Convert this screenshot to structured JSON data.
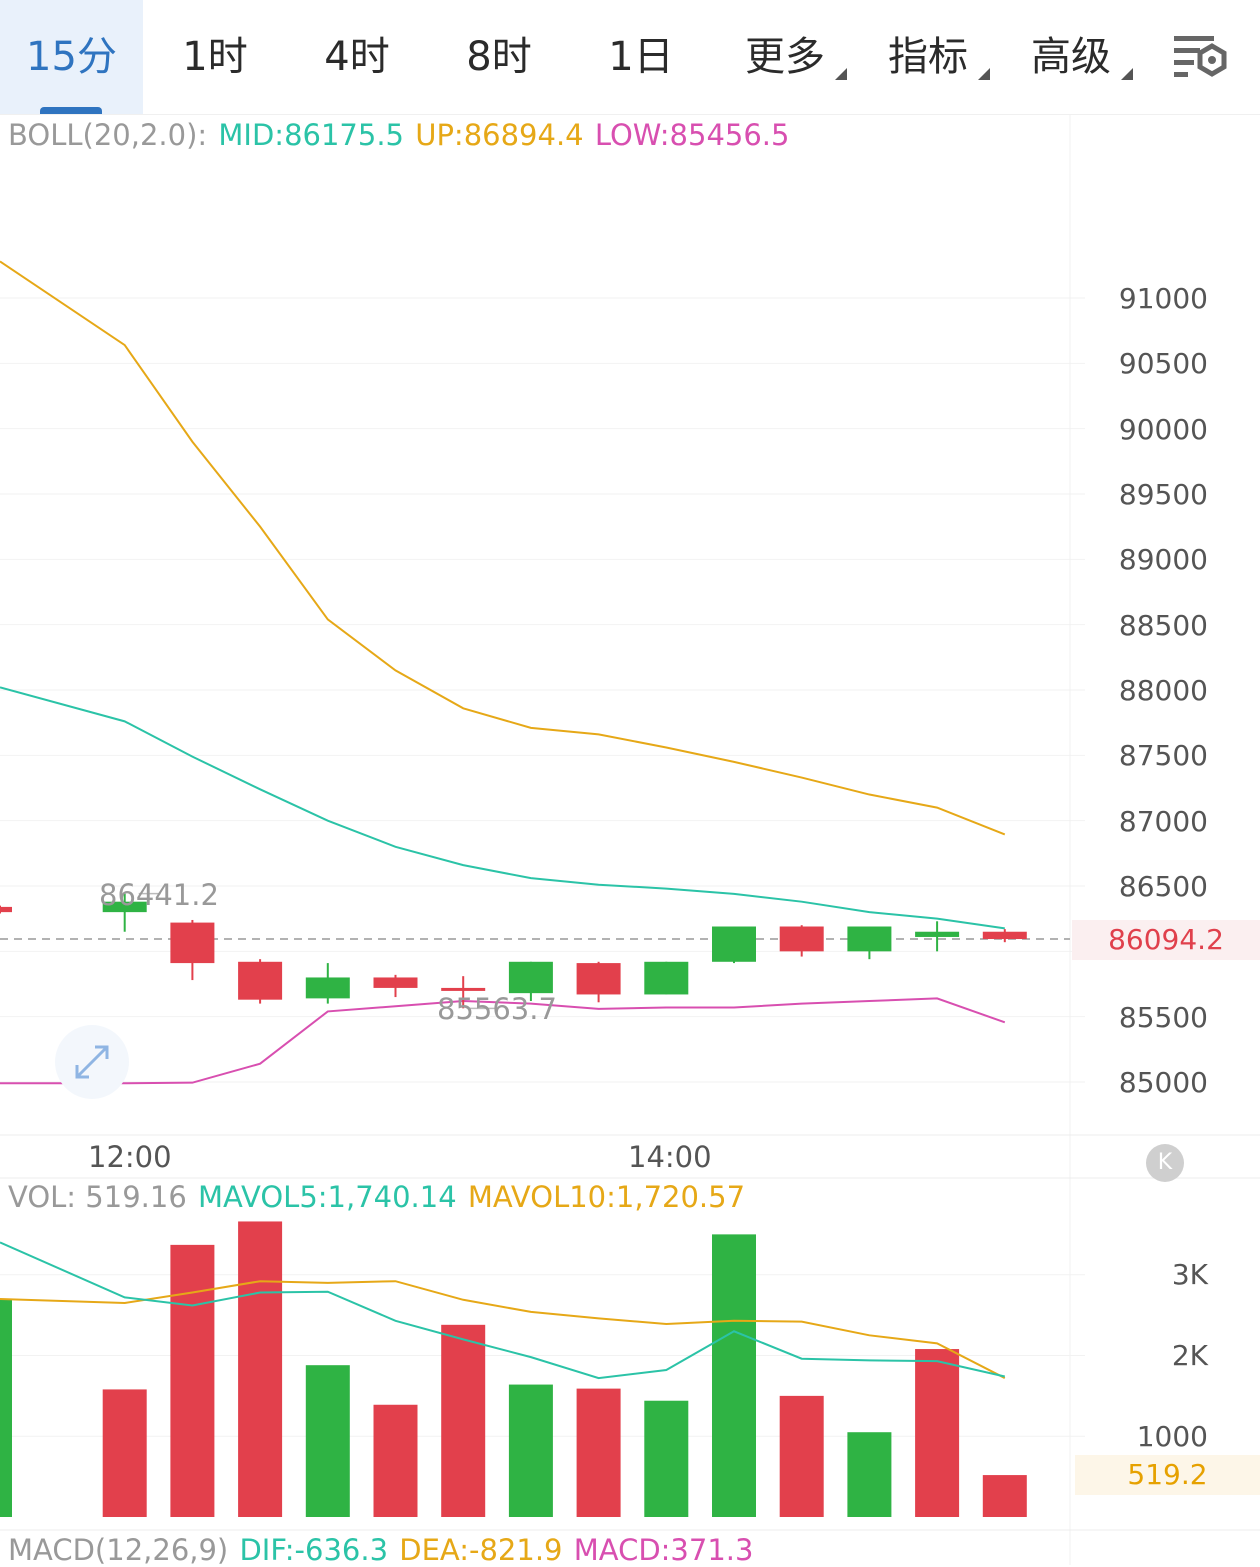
{
  "tabs": [
    {
      "label": "15分",
      "active": true
    },
    {
      "label": "1时"
    },
    {
      "label": "4时"
    },
    {
      "label": "8时"
    },
    {
      "label": "1日"
    },
    {
      "label": "更多",
      "dropdown": true
    },
    {
      "label": "指标",
      "dropdown": true
    },
    {
      "label": "高级",
      "dropdown": true
    }
  ],
  "settings_icon": "chart-settings-icon",
  "boll": {
    "prefix": "BOLL(20,2.0):",
    "mid": "MID:86175.5",
    "up": "UP:86894.4",
    "low": "LOW:85456.5"
  },
  "vol": {
    "prefix": "VOL: 519.16",
    "mavol5": "MAVOL5:1,740.14",
    "mavol10": "MAVOL10:1,720.57"
  },
  "macd": {
    "prefix": "MACD(12,26,9)",
    "dif": "DIF:-636.3",
    "dea": "DEA:-821.9",
    "macd": "MACD:371.3"
  },
  "price_axis": [
    "91000",
    "90500",
    "90000",
    "89500",
    "89000",
    "88500",
    "88000",
    "87500",
    "87000",
    "86500",
    "85500",
    "85000"
  ],
  "volume_axis": [
    "3K",
    "2K",
    "1000"
  ],
  "current_price": "86094.2",
  "current_volume": "519.2",
  "high_label": "86441.2",
  "low_label": "85563.7",
  "time_labels": {
    "t1": "12:00",
    "t2": "14:00"
  },
  "colors": {
    "up": "#2fb344",
    "down": "#e2404c",
    "mid": "#2bc3a7",
    "upper": "#e6a817",
    "lower": "#d84fb0",
    "accent": "#2f74c0"
  },
  "chart_data": [
    {
      "type": "candlestick",
      "title": "BOLL(20,2.0)",
      "x": [
        "t0",
        "t1",
        "t2",
        "t3",
        "t4",
        "t5",
        "t6",
        "t7",
        "t8",
        "t9",
        "t10",
        "t11",
        "t12",
        "t13",
        "t14"
      ],
      "ylim": [
        84950,
        91300
      ],
      "candles": [
        {
          "o": 86340,
          "c": 86300,
          "h": 86350,
          "l": 86290
        },
        {
          "o": 86300,
          "c": 86380,
          "h": 86441.2,
          "l": 86150
        },
        {
          "o": 86220,
          "c": 85910,
          "h": 86240,
          "l": 85780
        },
        {
          "o": 85920,
          "c": 85630,
          "h": 85940,
          "l": 85600
        },
        {
          "o": 85640,
          "c": 85800,
          "h": 85910,
          "l": 85600
        },
        {
          "o": 85800,
          "c": 85720,
          "h": 85820,
          "l": 85650
        },
        {
          "o": 85720,
          "c": 85700,
          "h": 85810,
          "l": 85563.7
        },
        {
          "o": 85680,
          "c": 85920,
          "h": 85920,
          "l": 85620
        },
        {
          "o": 85910,
          "c": 85670,
          "h": 85920,
          "l": 85610
        },
        {
          "o": 85670,
          "c": 85920,
          "h": 85920,
          "l": 85670
        },
        {
          "o": 85920,
          "c": 86190,
          "h": 86190,
          "l": 85910
        },
        {
          "o": 86190,
          "c": 86000,
          "h": 86200,
          "l": 85960
        },
        {
          "o": 86000,
          "c": 86190,
          "h": 86190,
          "l": 85940
        },
        {
          "o": 86110,
          "c": 86150,
          "h": 86230,
          "l": 86000
        },
        {
          "o": 86150,
          "c": 86094.2,
          "h": 86170,
          "l": 86070
        }
      ],
      "upper": [
        91280,
        90640,
        89900,
        89250,
        88540,
        88150,
        87860,
        87710,
        87660,
        87560,
        87450,
        87330,
        87200,
        87100,
        86894.4
      ],
      "middle": [
        88020,
        87760,
        87490,
        87240,
        87000,
        86800,
        86660,
        86560,
        86510,
        86480,
        86440,
        86380,
        86300,
        86250,
        86175.5
      ],
      "lower": [
        84990,
        84990,
        84995,
        85140,
        85540,
        85580,
        85620,
        85600,
        85560,
        85570,
        85570,
        85600,
        85620,
        85640,
        85456.5
      ]
    },
    {
      "type": "bar",
      "title": "VOL",
      "ylim": [
        0,
        4000
      ],
      "values": [
        2700,
        1580,
        3370,
        3660,
        1880,
        1390,
        2380,
        1640,
        1590,
        1440,
        3500,
        1500,
        1050,
        2080,
        519.16
      ],
      "colors": [
        "up",
        "down",
        "down",
        "down",
        "up",
        "down",
        "down",
        "up",
        "down",
        "up",
        "up",
        "down",
        "up",
        "down",
        "down"
      ],
      "mavol5": [
        3400,
        2720,
        2620,
        2780,
        2790,
        2430,
        2200,
        1980,
        1720,
        1820,
        2300,
        1960,
        1940,
        1930,
        1740.14
      ],
      "mavol10": [
        2700,
        2650,
        2780,
        2920,
        2900,
        2920,
        2690,
        2540,
        2460,
        2390,
        2430,
        2420,
        2250,
        2150,
        1720.57
      ]
    }
  ]
}
